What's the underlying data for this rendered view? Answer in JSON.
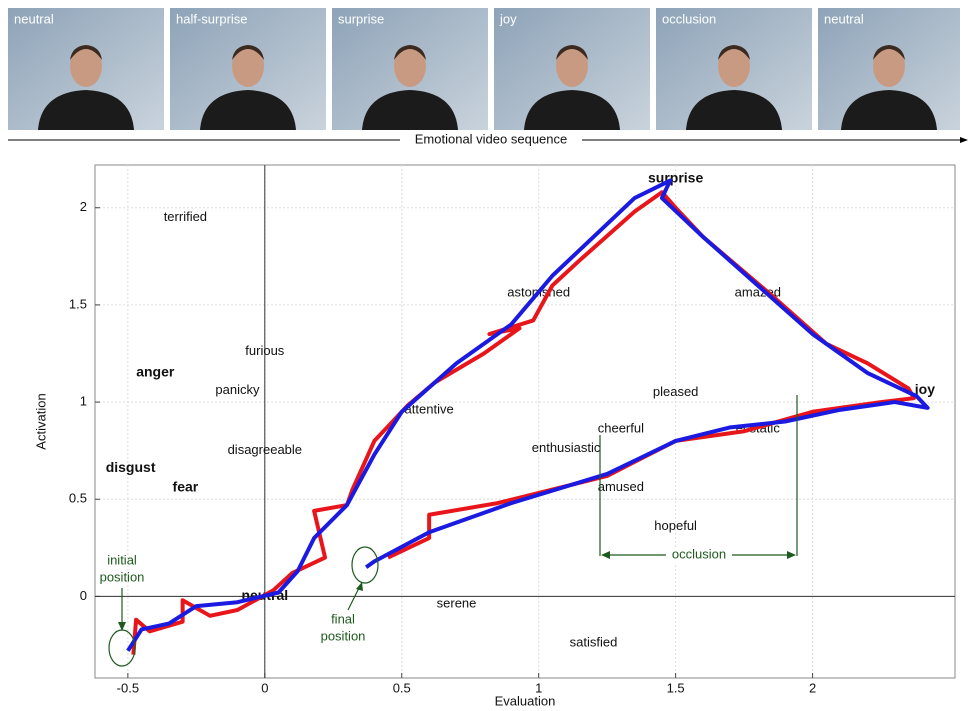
{
  "video": {
    "frames": [
      "neutral",
      "half-surprise",
      "surprise",
      "joy",
      "occlusion",
      "neutral"
    ],
    "sequence_label": "Emotional video sequence"
  },
  "chart_data": {
    "type": "line",
    "xlabel": "Evaluation",
    "ylabel": "Activation",
    "xlim": [
      -0.62,
      2.52
    ],
    "ylim": [
      -0.42,
      2.22
    ],
    "xticks": [
      -0.5,
      0,
      0.5,
      1,
      1.5,
      2
    ],
    "yticks": [
      0,
      0.5,
      1,
      1.5,
      2
    ],
    "grid": true,
    "series": [
      {
        "color": "#e8161b",
        "x": [
          -0.48,
          -0.47,
          -0.42,
          -0.3,
          -0.3,
          -0.2,
          -0.1,
          0.03,
          0.1,
          0.22,
          0.18,
          0.3,
          0.32,
          0.4,
          0.52,
          0.62,
          0.8,
          0.93,
          0.82,
          0.98,
          1.05,
          1.15,
          1.35,
          1.45,
          1.5,
          1.6,
          1.85,
          2.05,
          2.2,
          2.35,
          2.37,
          2.25,
          2.0,
          1.95,
          1.75,
          1.5,
          1.25,
          0.85,
          0.6,
          0.6,
          0.45
        ],
        "values": [
          -0.3,
          -0.12,
          -0.18,
          -0.13,
          -0.02,
          -0.1,
          -0.07,
          0.03,
          0.12,
          0.2,
          0.44,
          0.47,
          0.55,
          0.8,
          0.98,
          1.1,
          1.25,
          1.38,
          1.35,
          1.42,
          1.6,
          1.73,
          1.98,
          2.08,
          2.0,
          1.85,
          1.55,
          1.3,
          1.2,
          1.07,
          1.02,
          1.0,
          0.95,
          0.93,
          0.85,
          0.8,
          0.62,
          0.48,
          0.42,
          0.3,
          0.2
        ]
      },
      {
        "color": "#1a1ae0",
        "x": [
          -0.5,
          -0.45,
          -0.35,
          -0.25,
          -0.1,
          0.05,
          0.12,
          0.18,
          0.3,
          0.4,
          0.5,
          0.7,
          0.9,
          1.05,
          1.2,
          1.35,
          1.48,
          1.45,
          1.6,
          1.8,
          2.0,
          2.2,
          2.38,
          2.42,
          2.3,
          2.1,
          1.9,
          1.7,
          1.5,
          1.25,
          0.9,
          0.6,
          0.4,
          0.37
        ],
        "values": [
          -0.28,
          -0.17,
          -0.14,
          -0.05,
          -0.03,
          0.02,
          0.13,
          0.3,
          0.47,
          0.73,
          0.95,
          1.2,
          1.4,
          1.65,
          1.85,
          2.05,
          2.14,
          2.05,
          1.85,
          1.6,
          1.35,
          1.15,
          1.03,
          0.97,
          1.0,
          0.96,
          0.9,
          0.87,
          0.8,
          0.63,
          0.48,
          0.33,
          0.18,
          0.15
        ]
      }
    ],
    "annotations": [
      {
        "text": "terrified",
        "x": -0.29,
        "y": 1.95
      },
      {
        "text": "anger",
        "x": -0.4,
        "y": 1.15,
        "bold": true
      },
      {
        "text": "furious",
        "x": 0.0,
        "y": 1.26
      },
      {
        "text": "panicky",
        "x": -0.1,
        "y": 1.06
      },
      {
        "text": "disagreeable",
        "x": 0.0,
        "y": 0.75
      },
      {
        "text": "disgust",
        "x": -0.49,
        "y": 0.66,
        "bold": true
      },
      {
        "text": "fear",
        "x": -0.29,
        "y": 0.56,
        "bold": true
      },
      {
        "text": "neutral",
        "x": 0.0,
        "y": 0.0,
        "bold": true
      },
      {
        "text": "serene",
        "x": 0.7,
        "y": -0.04
      },
      {
        "text": "satisfied",
        "x": 1.2,
        "y": -0.24
      },
      {
        "text": "attentive",
        "x": 0.6,
        "y": 0.96
      },
      {
        "text": "astonished",
        "x": 1.0,
        "y": 1.56
      },
      {
        "text": "surprise",
        "x": 1.5,
        "y": 2.15,
        "bold": true
      },
      {
        "text": "amazed",
        "x": 1.8,
        "y": 1.56
      },
      {
        "text": "pleased",
        "x": 1.5,
        "y": 1.05
      },
      {
        "text": "joy",
        "x": 2.41,
        "y": 1.06,
        "bold": true
      },
      {
        "text": "cheerful",
        "x": 1.3,
        "y": 0.86
      },
      {
        "text": "enthusiastic",
        "x": 1.1,
        "y": 0.76
      },
      {
        "text": "ecstatic",
        "x": 1.8,
        "y": 0.86
      },
      {
        "text": "amused",
        "x": 1.3,
        "y": 0.56
      },
      {
        "text": "hopeful",
        "x": 1.5,
        "y": 0.36
      }
    ],
    "notes": {
      "initial": [
        "initial",
        "position"
      ],
      "final": [
        "final",
        "position"
      ],
      "occlusion": "occlusion"
    }
  }
}
